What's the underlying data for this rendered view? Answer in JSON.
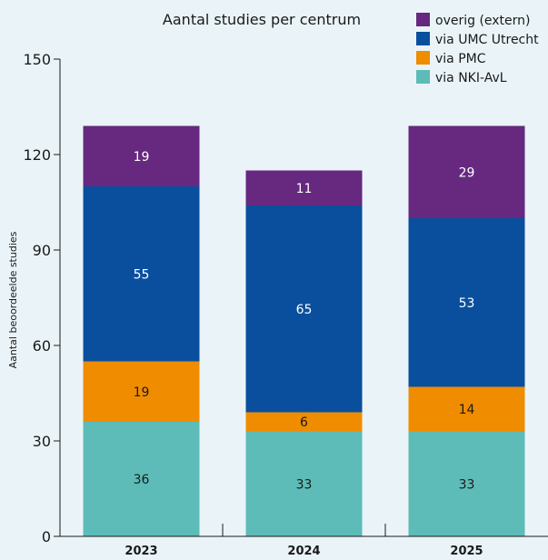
{
  "chart_data": {
    "type": "bar",
    "stacked": true,
    "title": "Aantal studies per centrum",
    "xlabel": "",
    "ylabel": "Aantal beoordeelde studies",
    "ylim": [
      0,
      150
    ],
    "yticks": [
      "0",
      "30",
      "60",
      "90",
      "120",
      "150"
    ],
    "grid": false,
    "legend_position": "top-right",
    "categories": [
      "2023",
      "2024",
      "2025"
    ],
    "series": [
      {
        "name": "via NKI-AvL",
        "color": "#5dbcb8",
        "label_color": "#1a1a1a",
        "values": [
          36,
          33,
          33
        ]
      },
      {
        "name": "via PMC",
        "color": "#f08c00",
        "label_color": "#1a1a1a",
        "values": [
          19,
          6,
          14
        ]
      },
      {
        "name": "via UMC Utrecht",
        "color": "#0a4f9e",
        "label_color": "#ffffff",
        "values": [
          55,
          65,
          53
        ]
      },
      {
        "name": "overig (extern)",
        "color": "#66297f",
        "label_color": "#ffffff",
        "values": [
          19,
          11,
          29
        ]
      }
    ],
    "legend_order": [
      3,
      2,
      1,
      0
    ]
  }
}
